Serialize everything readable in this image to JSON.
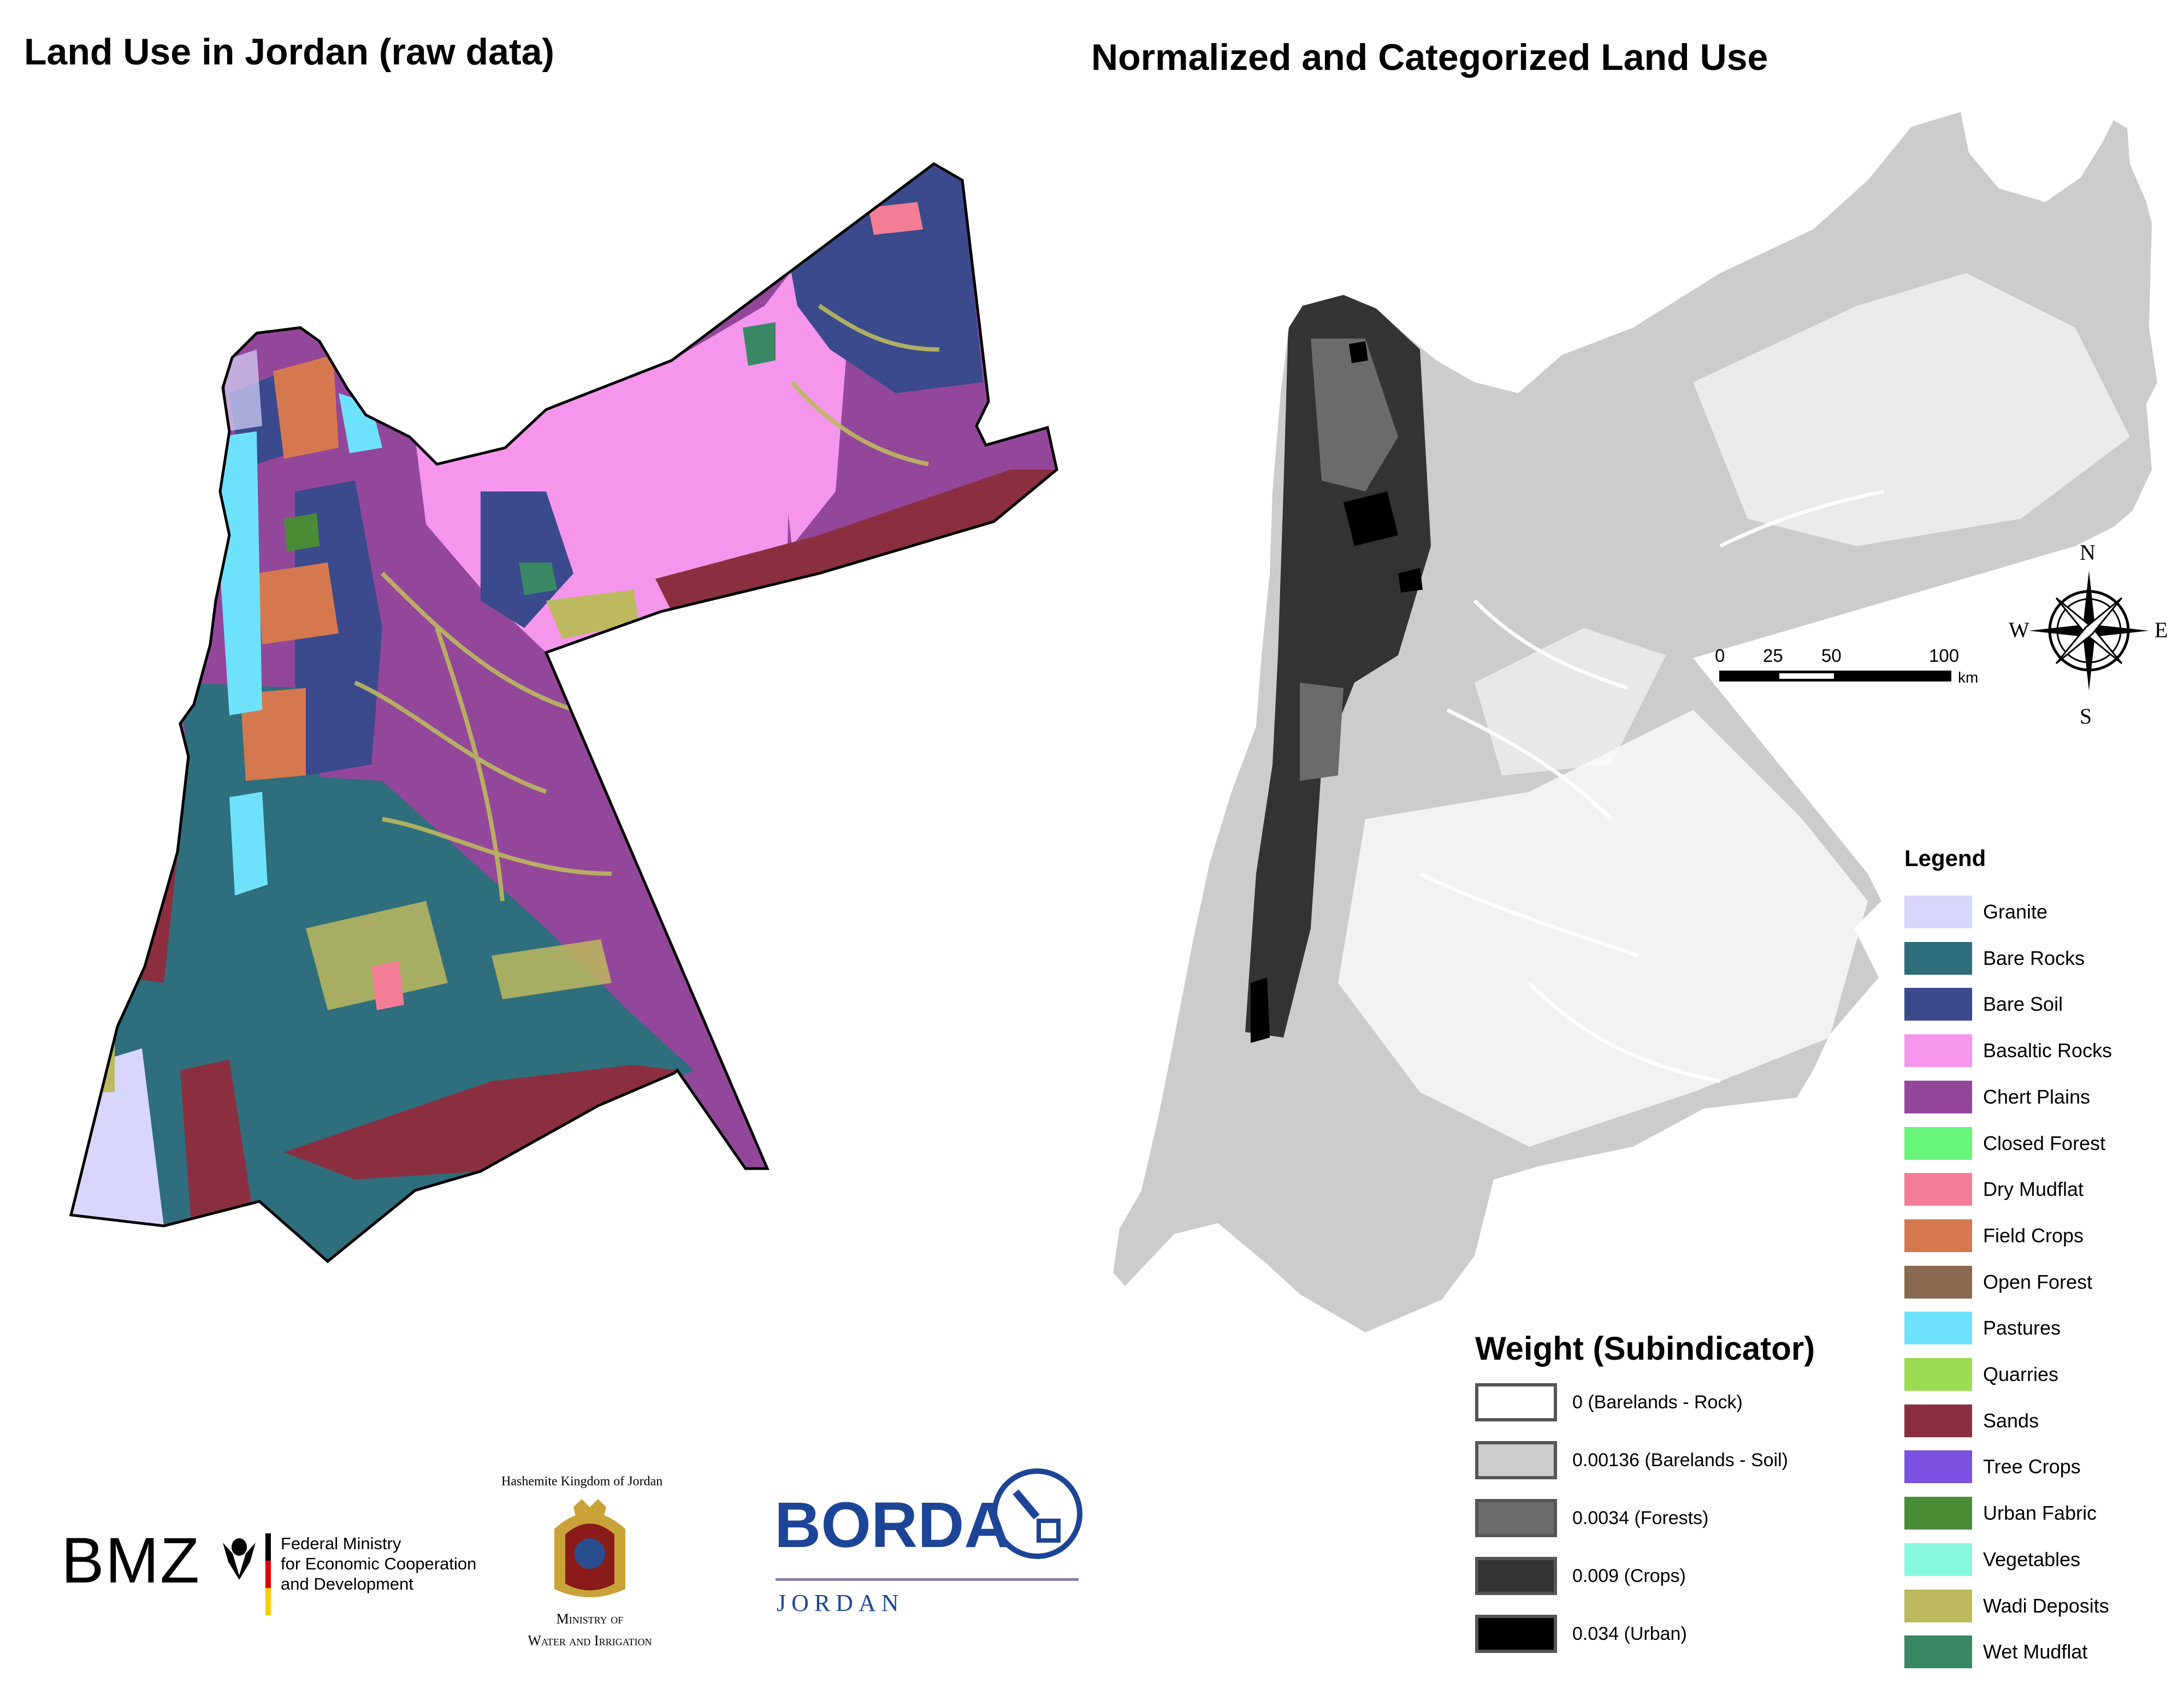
{
  "titles": {
    "left": "Land Use in Jordan (raw data)",
    "right": "Normalized and Categorized Land Use"
  },
  "legend": {
    "title": "Legend",
    "items": [
      {
        "label": "Granite",
        "color": "#d9d6fb"
      },
      {
        "label": "Bare Rocks",
        "color": "#2f6e7c"
      },
      {
        "label": "Bare Soil",
        "color": "#3a4a8c"
      },
      {
        "label": "Basaltic Rocks",
        "color": "#f596ec"
      },
      {
        "label": "Chert Plains",
        "color": "#93479a"
      },
      {
        "label": "Closed Forest",
        "color": "#66f57a"
      },
      {
        "label": "Dry Mudflat",
        "color": "#f47d96"
      },
      {
        "label": "Field Crops",
        "color": "#d6784f"
      },
      {
        "label": "Open Forest",
        "color": "#8a6951"
      },
      {
        "label": "Pastures",
        "color": "#6fe2fb"
      },
      {
        "label": "Quarries",
        "color": "#9bdc52"
      },
      {
        "label": "Sands",
        "color": "#8b2f40"
      },
      {
        "label": "Tree Crops",
        "color": "#7b52e0"
      },
      {
        "label": "Urban Fabric",
        "color": "#4a8c35"
      },
      {
        "label": "Vegetables",
        "color": "#86f7df"
      },
      {
        "label": "Wadi Deposits",
        "color": "#bcb95e"
      },
      {
        "label": "Wet Mudflat",
        "color": "#3a8766"
      }
    ]
  },
  "weights": {
    "title": "Weight (Subindicator)",
    "items": [
      {
        "label": "0 (Barelands - Rock)",
        "color": "#ffffff"
      },
      {
        "label": "0.00136 (Barelands - Soil)",
        "color": "#cccccc"
      },
      {
        "label": "0.0034 (Forests)",
        "color": "#6b6b6b"
      },
      {
        "label": "0.009 (Crops)",
        "color": "#333333"
      },
      {
        "label": "0.034 (Urban)",
        "color": "#000000"
      }
    ]
  },
  "scale_bar": {
    "ticks": [
      "0",
      "25",
      "50",
      "100"
    ],
    "unit": "km"
  },
  "compass": {
    "n": "N",
    "s": "S",
    "e": "E",
    "w": "W"
  },
  "logos": {
    "bmz": {
      "name": "BMZ",
      "line1": "Federal Ministry",
      "line2": "for Economic Cooperation",
      "line3": "and Development"
    },
    "ministry": {
      "top": "Hashemite Kingdom of Jordan",
      "line1": "Ministry of",
      "line2": "Water and Irrigation"
    },
    "borda": {
      "name": "BORDA",
      "sub": "JORDAN"
    }
  }
}
